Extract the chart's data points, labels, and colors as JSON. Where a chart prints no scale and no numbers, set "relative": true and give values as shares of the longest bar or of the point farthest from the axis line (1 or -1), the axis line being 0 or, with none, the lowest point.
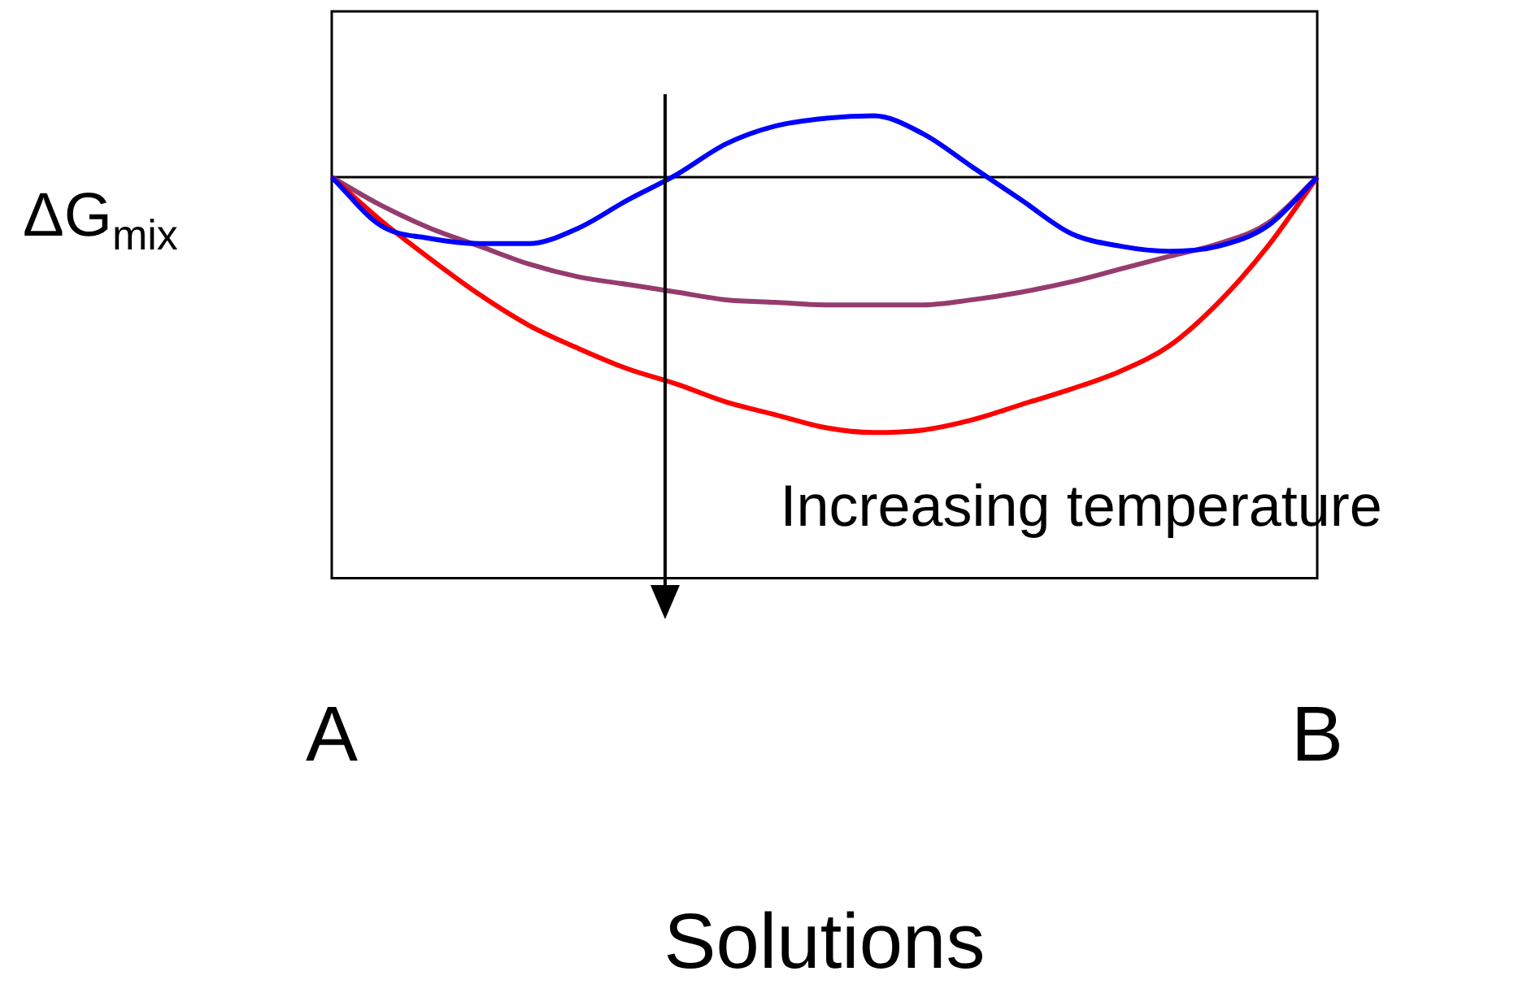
{
  "chart_data": {
    "type": "line",
    "relative": true,
    "xlabel": "Solutions",
    "ylabel": "ΔG$_{mix}$",
    "annotations": [
      "Increasing temperature"
    ],
    "categories": [
      "A",
      null,
      null,
      null,
      null,
      null,
      null,
      null,
      null,
      null,
      null,
      null,
      null,
      null,
      null,
      null,
      null,
      null,
      null,
      null,
      "B"
    ],
    "series": [
      {
        "color": "#0000ff",
        "values": [
          0,
          -0.19,
          -0.24,
          -0.26,
          -0.26,
          -0.2,
          -0.09,
          0.01,
          0.13,
          0.2,
          0.23,
          0.24,
          0.17,
          0.04,
          -0.09,
          -0.22,
          -0.27,
          -0.29,
          -0.27,
          -0.19,
          0
        ]
      },
      {
        "color": "#ff0000",
        "values": [
          0,
          -0.17,
          -0.32,
          -0.46,
          -0.58,
          -0.67,
          -0.75,
          -0.81,
          -0.88,
          -0.93,
          -0.98,
          -1,
          -0.99,
          -0.95,
          -0.89,
          -0.83,
          -0.76,
          -0.66,
          -0.49,
          -0.27,
          0
        ]
      },
      {
        "color": "#953c6e",
        "values": [
          0,
          -0.11,
          -0.2,
          -0.27,
          -0.34,
          -0.39,
          -0.42,
          -0.45,
          -0.48,
          -0.49,
          -0.5,
          -0.5,
          -0.5,
          -0.48,
          -0.45,
          -0.41,
          -0.36,
          -0.31,
          -0.26,
          -0.18,
          0
        ]
      }
    ],
    "grid": false,
    "legend": false,
    "marker": "none",
    "line_style": "solid"
  }
}
